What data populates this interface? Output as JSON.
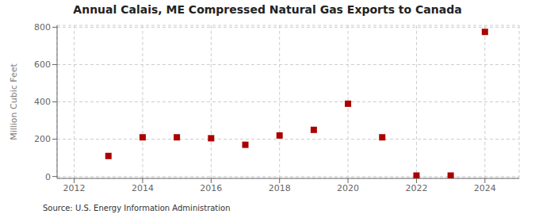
{
  "chart_data": {
    "type": "scatter",
    "title": "Annual Calais, ME Compressed Natural Gas Exports to Canada",
    "ylabel": "Million Cubic Feet",
    "annotations": [
      "Source: U.S. Energy Information Administration"
    ],
    "x": [
      2013,
      2014,
      2015,
      2016,
      2017,
      2018,
      2019,
      2020,
      2021,
      2022,
      2023,
      2024
    ],
    "values": [
      110,
      210,
      210,
      205,
      170,
      220,
      250,
      390,
      210,
      5,
      5,
      775
    ],
    "color": "#aa0000",
    "marker": "square",
    "xlim": [
      2011.5,
      2025.0
    ],
    "ylim": [
      -10,
      810
    ],
    "xticks": [
      2012,
      2014,
      2016,
      2018,
      2020,
      2022,
      2024
    ],
    "yticks": [
      0,
      200,
      400,
      600,
      800
    ],
    "grid": true
  }
}
